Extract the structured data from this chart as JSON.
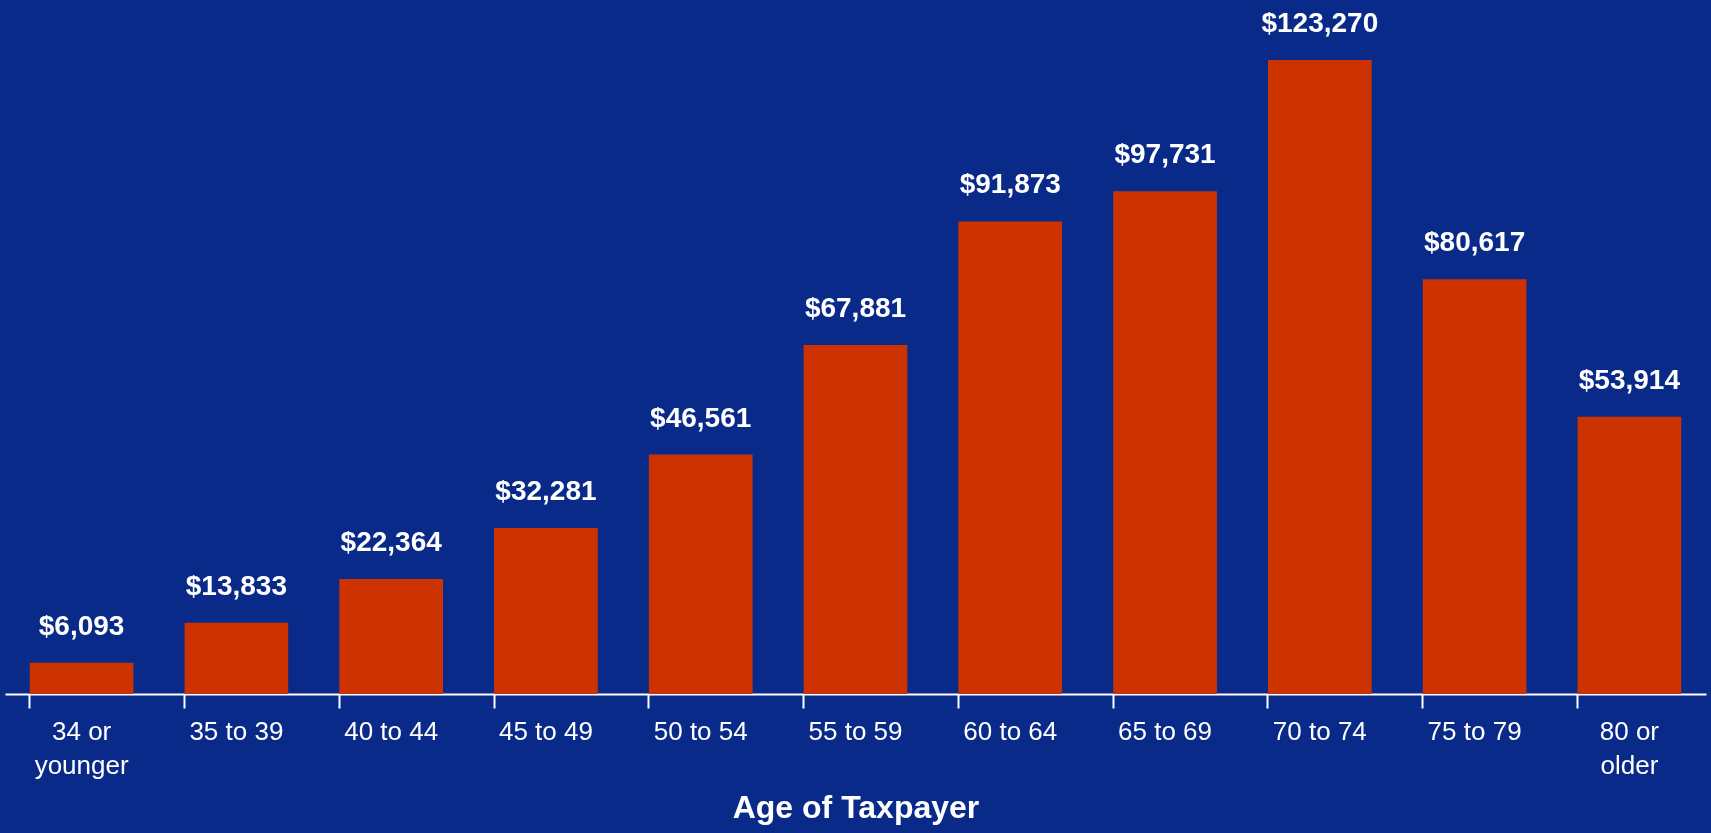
{
  "chart_data": {
    "type": "bar",
    "xlabel": "Age of Taxpayer",
    "categories": [
      "34 or younger",
      "35 to 39",
      "40 to 44",
      "45 to 49",
      "50 to 54",
      "55 to 59",
      "60 to 64",
      "65 to 69",
      "70 to 74",
      "75 to 79",
      "80 or older"
    ],
    "values": [
      6093,
      13833,
      22364,
      32281,
      46561,
      67881,
      91873,
      97731,
      123270,
      80617,
      53914
    ],
    "value_labels": [
      "$6,093",
      "$13,833",
      "$22,364",
      "$32,281",
      "$46,561",
      "$67,881",
      "$91,873",
      "$97,731",
      "$123,270",
      "$80,617",
      "$53,914"
    ],
    "color": "#cc3300"
  }
}
